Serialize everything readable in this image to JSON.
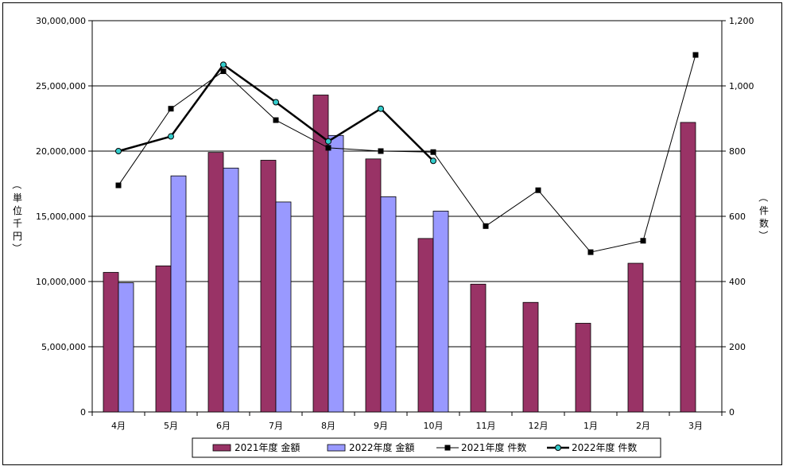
{
  "chart_data": {
    "type": "bar",
    "categories": [
      "4月",
      "5月",
      "6月",
      "7月",
      "8月",
      "9月",
      "10月",
      "11月",
      "12月",
      "1月",
      "2月",
      "3月"
    ],
    "bar_series": [
      {
        "name": "2021年度 金額",
        "color": "#993366",
        "values": [
          10700000,
          11200000,
          19900000,
          19300000,
          24300000,
          19400000,
          13300000,
          9800000,
          8400000,
          6800000,
          11400000,
          22200000
        ]
      },
      {
        "name": "2022年度 金額",
        "color": "#9999ff",
        "values": [
          9900000,
          18100000,
          18700000,
          16100000,
          21200000,
          16500000,
          15400000,
          null,
          null,
          null,
          null,
          null
        ]
      }
    ],
    "line_series": [
      {
        "name": "2021年度 件数",
        "color": "#000000",
        "marker": "square",
        "values": [
          695,
          930,
          1045,
          895,
          810,
          800,
          797,
          570,
          680,
          490,
          525,
          1095
        ]
      },
      {
        "name": "2022年度 件数",
        "color": "#000000",
        "marker_fill": "#33cccc",
        "marker": "circle",
        "values": [
          800,
          845,
          1065,
          950,
          830,
          930,
          770,
          null,
          null,
          null,
          null,
          null
        ]
      }
    ],
    "y_left": {
      "label": "（単位千円）",
      "min": 0,
      "max": 30000000,
      "step": 5000000,
      "ticks": [
        "0",
        "5,000,000",
        "10,000,000",
        "15,000,000",
        "20,000,000",
        "25,000,000",
        "30,000,000"
      ]
    },
    "y_right": {
      "label": "（件数）",
      "min": 0,
      "max": 1200,
      "step": 200,
      "ticks": [
        "0",
        "200",
        "400",
        "600",
        "800",
        "1,000",
        "1,200"
      ]
    },
    "grid": true,
    "legend_position": "bottom"
  }
}
